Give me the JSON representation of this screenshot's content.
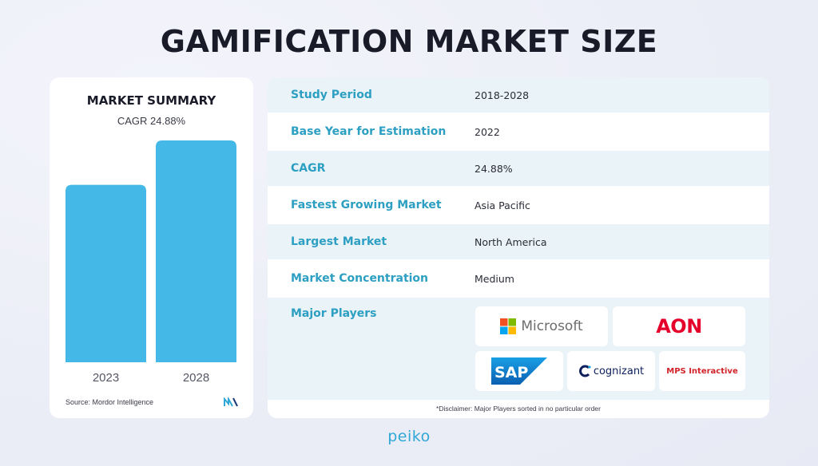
{
  "title": "GAMIFICATION MARKET SIZE",
  "summary": {
    "heading": "MARKET SUMMARY",
    "cagr_text": "CAGR 24.88%",
    "source": "Source: Mordor Intelligence"
  },
  "chart_data": {
    "type": "bar",
    "categories": [
      "2023",
      "2028"
    ],
    "values": [
      0.8,
      1.0
    ],
    "bar_color": "#44b8e6"
  },
  "table": {
    "rows": [
      {
        "label": "Study Period",
        "value": "2018-2028"
      },
      {
        "label": "Base Year for Estimation",
        "value": "2022"
      },
      {
        "label": "CAGR",
        "value": "24.88%"
      },
      {
        "label": "Fastest Growing Market",
        "value": "Asia Pacific"
      },
      {
        "label": "Largest Market",
        "value": "North America"
      },
      {
        "label": "Market Concentration",
        "value": "Medium"
      }
    ],
    "players_label": "Major Players",
    "players": [
      "Microsoft",
      "AON",
      "SAP",
      "cognizant",
      "MPS Interactive"
    ],
    "disclaimer": "*Disclaimer: Major Players sorted in no particular order"
  },
  "brand": "peiko",
  "colors": {
    "label_accent": "#2d9fc2",
    "row_tint": "#eaf4f8",
    "aon_red": "#e4002b",
    "sap_blue": "#0b74c9",
    "cognizant_navy": "#0d1f5c",
    "mps_red": "#d2232a"
  }
}
